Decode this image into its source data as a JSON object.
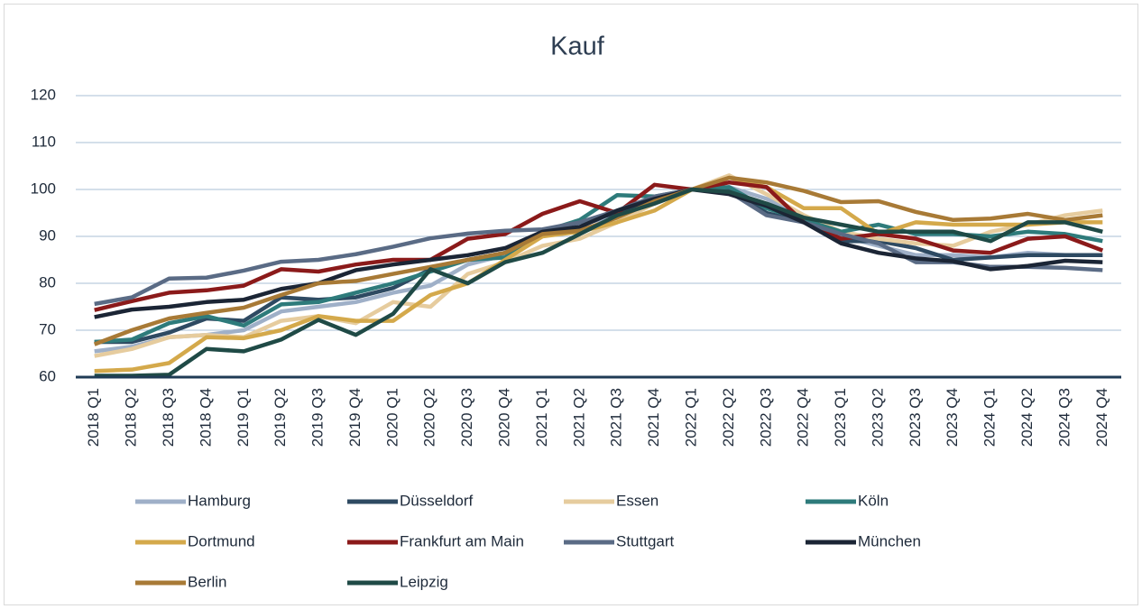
{
  "chart_data": {
    "type": "line",
    "title": "Kauf",
    "categories": [
      "2018 Q1",
      "2018 Q2",
      "2018 Q3",
      "2018 Q4",
      "2019 Q1",
      "2019 Q2",
      "2019 Q3",
      "2019 Q4",
      "2020 Q1",
      "2020 Q2",
      "2020 Q3",
      "2020 Q4",
      "2021 Q1",
      "2021 Q2",
      "2021 Q3",
      "2021 Q4",
      "2022 Q1",
      "2022 Q2",
      "2022 Q3",
      "2022 Q4",
      "2023 Q1",
      "2023 Q2",
      "2023 Q3",
      "2023 Q4",
      "2024 Q1",
      "2024 Q2",
      "2024 Q3",
      "2024 Q4"
    ],
    "series": [
      {
        "name": "Hamburg",
        "color": "#9fb0c8",
        "values": [
          65.5,
          66.5,
          68.5,
          69,
          70,
          74,
          75,
          76,
          78,
          79.5,
          84,
          86,
          90,
          92.5,
          94.5,
          97,
          100,
          100.5,
          98,
          94,
          90,
          88,
          86,
          86,
          85.5,
          86.5,
          86,
          86
        ]
      },
      {
        "name": "Düsseldorf",
        "color": "#2e4a62",
        "values": [
          67.5,
          67.5,
          69.5,
          72.5,
          72,
          77,
          76.5,
          77,
          79,
          83,
          85,
          86.5,
          91,
          93,
          95,
          97.5,
          100,
          100,
          95,
          93,
          89,
          89,
          87.5,
          85,
          85.5,
          86,
          86,
          86
        ]
      },
      {
        "name": "Essen",
        "color": "#e6cc9e",
        "values": [
          64.5,
          66,
          68.5,
          69,
          68.5,
          72,
          73,
          71.5,
          76,
          75,
          82,
          84.5,
          88,
          89.5,
          93,
          97,
          100,
          103,
          99,
          94.5,
          91,
          89.5,
          88.5,
          88,
          91,
          92.5,
          94.5,
          95.5
        ]
      },
      {
        "name": "Köln",
        "color": "#2e7b7b",
        "values": [
          67.5,
          68,
          71.5,
          73,
          71,
          75.5,
          76,
          78,
          80,
          82.5,
          85,
          85.5,
          91,
          93.5,
          98.8,
          98.5,
          100,
          100.5,
          96,
          93.5,
          91,
          92.5,
          90.5,
          90.5,
          90,
          91,
          90.5,
          89
        ]
      },
      {
        "name": "Dortmund",
        "color": "#d4a94b",
        "values": [
          61.3,
          61.6,
          63,
          68.5,
          68.3,
          70,
          73,
          72,
          72,
          77.5,
          80,
          85,
          90,
          91,
          93,
          95.5,
          100,
          102.5,
          100.5,
          96,
          96,
          90.5,
          93,
          92.5,
          92.5,
          92.5,
          93,
          93
        ]
      },
      {
        "name": "Frankfurt am Main",
        "color": "#8b1a1a",
        "values": [
          74.3,
          76.2,
          78,
          78.5,
          79.5,
          83,
          82.5,
          84,
          85,
          85,
          89.5,
          90.5,
          94.8,
          97.5,
          95,
          101,
          100,
          101.5,
          100.5,
          93,
          89.5,
          90.5,
          89.5,
          87,
          86.5,
          89.5,
          90,
          87
        ]
      },
      {
        "name": "Stuttgart",
        "color": "#5a6b85",
        "values": [
          75.6,
          77,
          81,
          81.2,
          82.7,
          84.6,
          85,
          86.2,
          87.8,
          89.6,
          90.6,
          91.2,
          91.5,
          93,
          95.5,
          98.5,
          100,
          99.5,
          94.5,
          93,
          90.5,
          88.5,
          84.5,
          84.5,
          83.5,
          83.5,
          83.3,
          82.8
        ]
      },
      {
        "name": "München",
        "color": "#1b2535",
        "values": [
          72.8,
          74.4,
          75,
          76,
          76.5,
          78.8,
          80,
          82.8,
          84,
          85,
          86,
          87.5,
          91,
          92,
          95.5,
          98,
          100,
          99,
          96.5,
          93,
          88.5,
          86.5,
          85.3,
          84.7,
          83,
          83.7,
          84.8,
          84.5
        ]
      },
      {
        "name": "Berlin",
        "color": "#a87a36",
        "values": [
          67,
          70,
          72.5,
          73.7,
          74.8,
          77.5,
          80,
          80.5,
          82,
          83.5,
          85,
          86.5,
          90.5,
          91.2,
          94,
          97.5,
          100,
          102.5,
          101.5,
          99.7,
          97.3,
          97.5,
          95.2,
          93.5,
          93.8,
          94.8,
          93.5,
          94.5
        ]
      },
      {
        "name": "Leipzig",
        "color": "#1f4a46",
        "values": [
          60.3,
          60.3,
          60.5,
          66,
          65.5,
          68,
          72.2,
          69,
          73.5,
          83,
          80,
          84.5,
          86.5,
          90.5,
          94.5,
          97,
          100,
          99.5,
          97,
          94,
          92.5,
          91,
          91,
          91,
          89,
          93,
          93,
          91
        ]
      }
    ],
    "ylim": [
      60,
      120
    ],
    "yticks": [
      60,
      70,
      80,
      90,
      100,
      110,
      120
    ],
    "grid": true,
    "legend": "bottom"
  }
}
